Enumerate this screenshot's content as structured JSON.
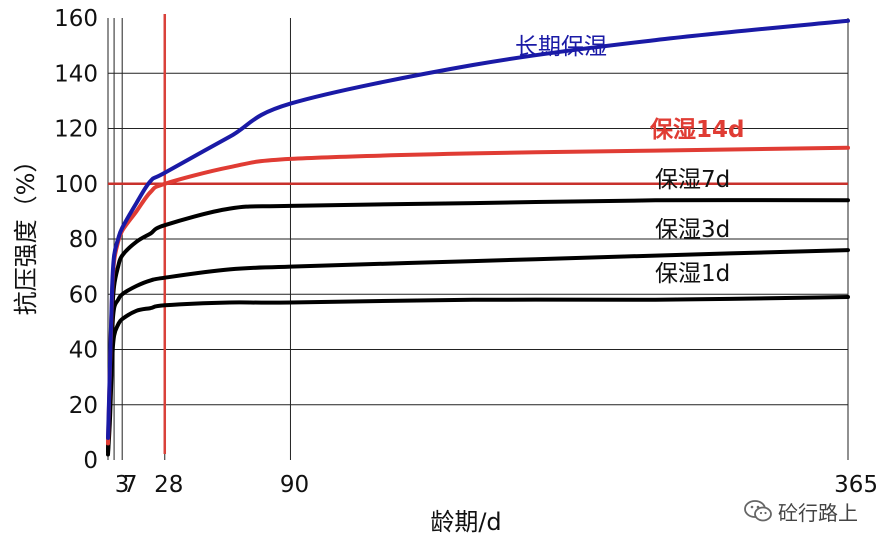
{
  "chart_data": {
    "type": "line",
    "xlabel": "龄期/d",
    "ylabel": "抗压强度（%）",
    "x_ticks": [
      3,
      7,
      28,
      90,
      365
    ],
    "y_ticks": [
      0,
      20,
      40,
      60,
      80,
      100,
      120,
      140,
      160
    ],
    "ylim": [
      0,
      160
    ],
    "grid": true,
    "reference_lines": [
      {
        "axis": "x",
        "value": 28,
        "color": "#d9413a"
      },
      {
        "axis": "y",
        "value": 100,
        "color": "#c8312c"
      }
    ],
    "series": [
      {
        "name": "长期保湿",
        "color": "#1a1aa6",
        "points": [
          [
            0,
            8
          ],
          [
            1,
            35
          ],
          [
            2,
            62
          ],
          [
            3,
            74
          ],
          [
            5,
            80
          ],
          [
            7,
            84
          ],
          [
            14,
            93
          ],
          [
            21,
            101
          ],
          [
            28,
            104
          ],
          [
            60,
            117
          ],
          [
            90,
            129
          ],
          [
            180,
            143
          ],
          [
            270,
            152
          ],
          [
            365,
            159
          ]
        ]
      },
      {
        "name": "保湿14d",
        "color": "#e03c34",
        "points": [
          [
            0,
            6
          ],
          [
            1,
            34
          ],
          [
            2,
            60
          ],
          [
            3,
            72
          ],
          [
            5,
            79
          ],
          [
            7,
            83
          ],
          [
            14,
            90
          ],
          [
            21,
            97
          ],
          [
            28,
            100
          ],
          [
            60,
            106
          ],
          [
            90,
            109
          ],
          [
            180,
            111
          ],
          [
            270,
            112
          ],
          [
            365,
            113
          ]
        ]
      },
      {
        "name": "保湿7d",
        "color": "#000000",
        "points": [
          [
            0,
            4
          ],
          [
            1,
            28
          ],
          [
            2,
            52
          ],
          [
            3,
            63
          ],
          [
            5,
            70
          ],
          [
            7,
            74
          ],
          [
            14,
            79
          ],
          [
            21,
            82
          ],
          [
            28,
            85
          ],
          [
            60,
            91
          ],
          [
            90,
            92
          ],
          [
            180,
            93
          ],
          [
            270,
            94
          ],
          [
            365,
            94
          ]
        ]
      },
      {
        "name": "保湿3d",
        "color": "#000000",
        "points": [
          [
            0,
            3
          ],
          [
            1,
            22
          ],
          [
            2,
            46
          ],
          [
            3,
            55
          ],
          [
            5,
            58
          ],
          [
            7,
            60
          ],
          [
            14,
            63
          ],
          [
            21,
            65
          ],
          [
            28,
            66
          ],
          [
            60,
            69
          ],
          [
            90,
            70
          ],
          [
            180,
            72
          ],
          [
            270,
            74
          ],
          [
            365,
            76
          ]
        ]
      },
      {
        "name": "保湿1d",
        "color": "#000000",
        "points": [
          [
            0,
            2
          ],
          [
            1,
            15
          ],
          [
            2,
            36
          ],
          [
            3,
            45
          ],
          [
            5,
            49
          ],
          [
            7,
            51
          ],
          [
            14,
            54
          ],
          [
            21,
            55
          ],
          [
            28,
            56
          ],
          [
            60,
            57
          ],
          [
            90,
            57
          ],
          [
            180,
            58
          ],
          [
            270,
            58
          ],
          [
            365,
            59
          ]
        ]
      }
    ]
  },
  "watermark": {
    "icon": "wechat-icon",
    "text": "砼行路上"
  }
}
